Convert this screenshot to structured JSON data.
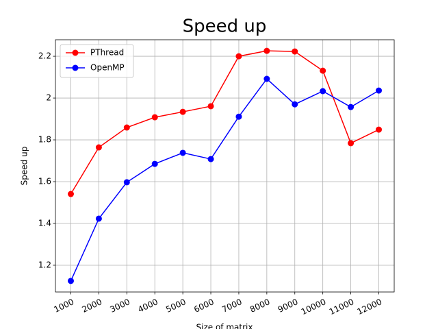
{
  "chart_data": {
    "type": "line",
    "title": "Speed up",
    "xlabel": "Size of matrix",
    "ylabel": "Speed up",
    "x": [
      1000,
      2000,
      3000,
      4000,
      5000,
      6000,
      7000,
      8000,
      9000,
      10000,
      11000,
      12000
    ],
    "series": [
      {
        "name": "PThread",
        "color": "#ff0000",
        "values": [
          1.541,
          1.764,
          1.859,
          1.908,
          1.934,
          1.961,
          2.2,
          2.226,
          2.223,
          2.131,
          1.784,
          1.849
        ]
      },
      {
        "name": "OpenMP",
        "color": "#0000ff",
        "values": [
          1.125,
          1.423,
          1.597,
          1.685,
          1.738,
          1.708,
          1.911,
          2.092,
          1.97,
          2.033,
          1.957,
          2.036
        ]
      }
    ],
    "xlim": [
      450,
      12550
    ],
    "ylim": [
      1.072,
      2.279
    ],
    "xticks": [
      1000,
      2000,
      3000,
      4000,
      5000,
      6000,
      7000,
      8000,
      9000,
      10000,
      11000,
      12000
    ],
    "yticks": [
      1.2,
      1.4,
      1.6,
      1.8,
      2.0,
      2.2
    ],
    "grid": true,
    "legend": "upper-left"
  }
}
